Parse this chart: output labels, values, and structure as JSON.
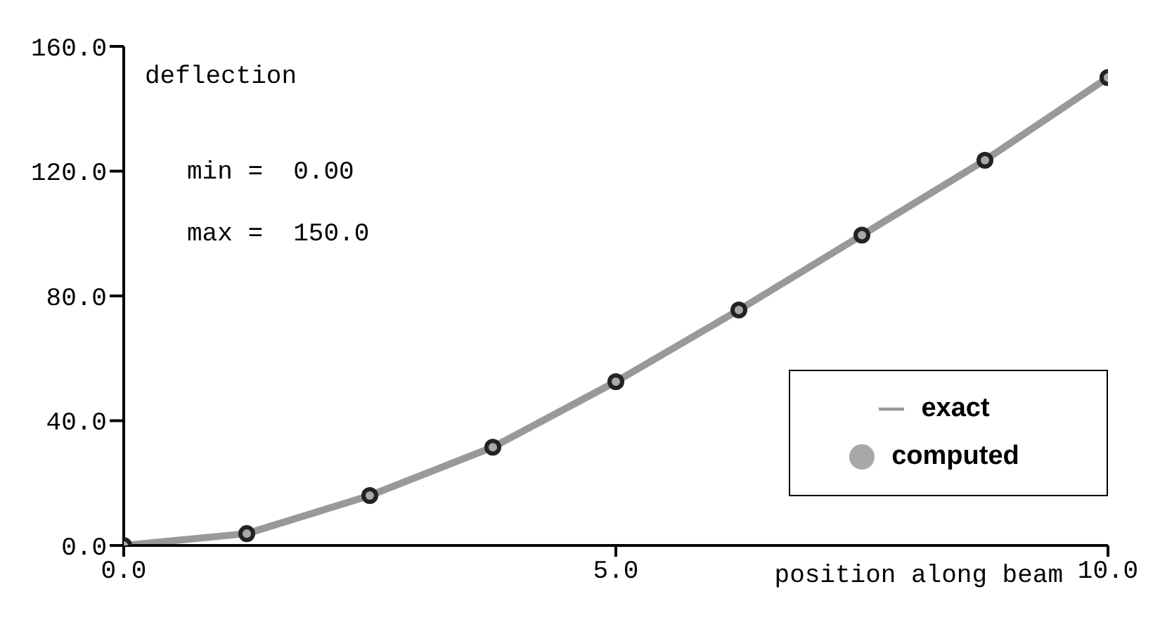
{
  "chart_data": {
    "type": "line",
    "xlabel": "position along beam",
    "ylabel": "deflection",
    "annotations": [
      "min =  0.00",
      "max =  150.0"
    ],
    "x": [
      0,
      1.25,
      2.5,
      3.75,
      5,
      6.25,
      7.5,
      8.75,
      10
    ],
    "series": [
      {
        "name": "exact",
        "color": "#999999",
        "marker": "none",
        "values": [
          0,
          3.8,
          16,
          31.5,
          52.5,
          75.5,
          99.5,
          123.5,
          150
        ]
      },
      {
        "name": "computed",
        "type": "scatter",
        "color": "#a8a8a8",
        "marker": "circle",
        "values": [
          0,
          3.8,
          16,
          31.5,
          52.5,
          75.5,
          99.5,
          123.5,
          150
        ]
      }
    ],
    "xlim": [
      0,
      10
    ],
    "xticks": [
      {
        "value": 0,
        "label": "0.0"
      },
      {
        "value": 5,
        "label": "5.0"
      },
      {
        "value": 10,
        "label": "10.0"
      }
    ],
    "ylim": [
      0,
      160
    ],
    "yticks": [
      {
        "value": 0,
        "label": "0.0"
      },
      {
        "value": 40,
        "label": "40.0"
      },
      {
        "value": 80,
        "label": "80.0"
      },
      {
        "value": 120,
        "label": "120.0"
      },
      {
        "value": 160,
        "label": "160.0"
      }
    ],
    "grid": false,
    "legend": "bottom right"
  }
}
